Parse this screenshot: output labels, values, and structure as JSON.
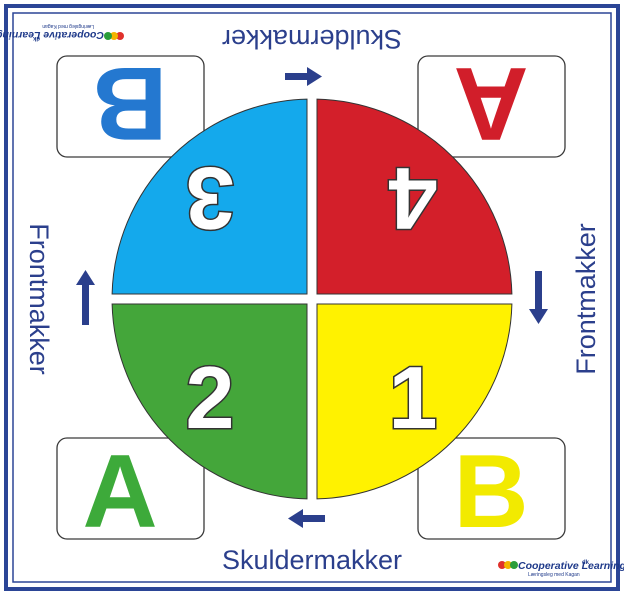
{
  "colors": {
    "border": "#2b4596",
    "arrow": "#2b3f8c",
    "card_border": "#3a3a3a",
    "quad_blue": "#14a9ec",
    "quad_red": "#d31f2a",
    "quad_green": "#44a63a",
    "quad_yellow": "#fff200",
    "letter_blue": "#2478d0",
    "letter_red": "#d11e2a",
    "letter_green": "#3daa3a",
    "letter_yellow": "#f2ea00"
  },
  "labels": {
    "top": "Skuldermakker",
    "bottom": "Skuldermakker",
    "left": "Frontmakker",
    "right": "Frontmakker"
  },
  "quadrants": {
    "top_left": "3",
    "top_right": "4",
    "bottom_left": "2",
    "bottom_right": "1"
  },
  "cards": {
    "top_left": "B",
    "top_right": "A",
    "bottom_left": "A",
    "bottom_right": "B"
  },
  "logo": {
    "name": "Cooperative Learning",
    "suffix": "dk",
    "tagline": "Læringsleg med Kagan"
  }
}
